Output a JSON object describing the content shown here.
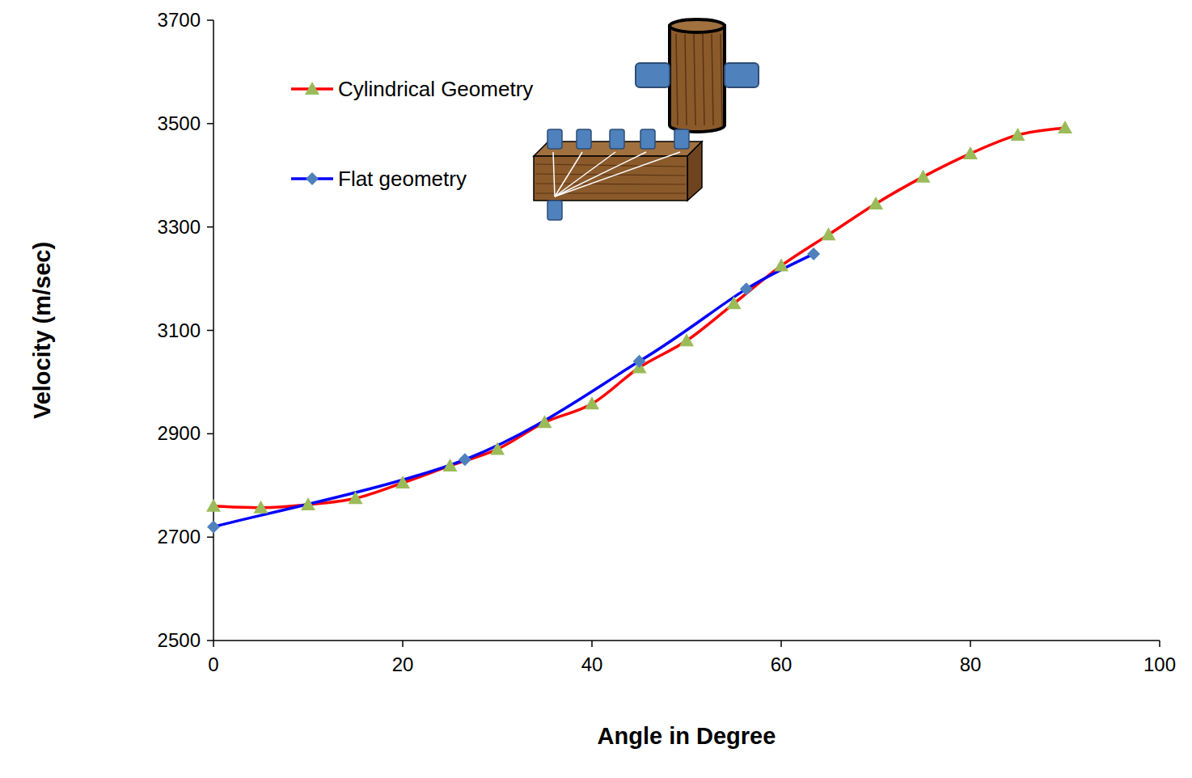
{
  "chart_data": {
    "type": "line",
    "x_label": "Angle in Degree",
    "y_label": "Velocity (m/sec)",
    "xlim": [
      0,
      100
    ],
    "xticks": [
      0,
      20,
      40,
      60,
      80,
      100
    ],
    "ylim": [
      2500,
      3700
    ],
    "yticks": [
      2500,
      2700,
      2900,
      3100,
      3300,
      3500,
      3700
    ],
    "grid": false,
    "legend": "top-left",
    "series": [
      {
        "name": "Cylindrical Geometry",
        "color": "#ff0000",
        "marker": "triangle",
        "line_style": "smooth",
        "x": [
          0,
          5,
          10,
          15,
          20,
          25,
          30,
          35,
          40,
          45,
          50,
          55,
          60,
          65,
          70,
          75,
          80,
          85,
          90
        ],
        "values": [
          2760,
          2757,
          2763,
          2775,
          2805,
          2838,
          2870,
          2922,
          2958,
          3028,
          3080,
          3152,
          3225,
          3285,
          3345,
          3397,
          3442,
          3478,
          3492
        ]
      },
      {
        "name": "Flat geometry",
        "color": "#0000ff",
        "marker": "diamond",
        "line_style": "smooth",
        "x": [
          0,
          26.57,
          45,
          56.31,
          63.43
        ],
        "values": [
          2720,
          2850,
          3040,
          3180,
          3248
        ]
      }
    ]
  }
}
